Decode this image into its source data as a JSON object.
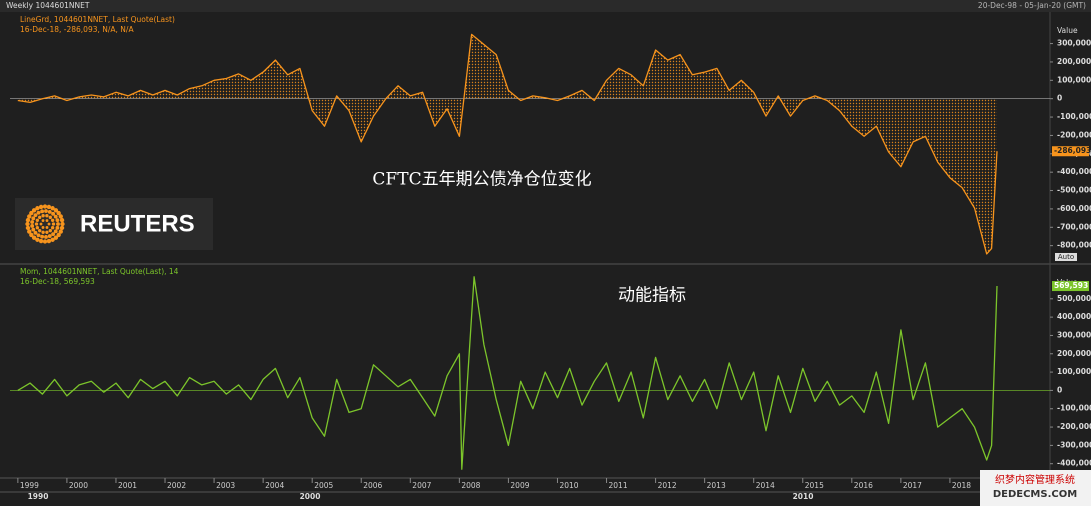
{
  "header": {
    "left": "Weekly 1044601NNET",
    "right": "20-Dec-98 - 05-Jan-20 (GMT)"
  },
  "logo": "REUTERS",
  "watermark": {
    "line1": "织梦内容管理系统",
    "line2": "DEDECMS.COM"
  },
  "x_decades": [
    "1990",
    "2000",
    "2010"
  ],
  "chart_data": [
    {
      "type": "area-line",
      "legend": [
        "LineGrd, 1044601NNET, Last Quote(Last)",
        "16-Dec-18, -286,093, N/A, N/A"
      ],
      "annotation": "CFTC五年期公债净仓位变化",
      "axis_title": "Value",
      "scale_mode": "Auto",
      "current_value": {
        "value": -286093,
        "label": "-286,093"
      },
      "color": "#f7941d",
      "xlim": [
        1998.84,
        2020.04
      ],
      "ylim": [
        -889000,
        461000
      ],
      "yticks": [
        {
          "value": 300000,
          "label": "300,000"
        },
        {
          "value": 200000,
          "label": "200,000"
        },
        {
          "value": 100000,
          "label": "100,000"
        },
        0,
        {
          "value": -100000,
          "label": "-100,000"
        },
        {
          "value": -200000,
          "label": "-200,000"
        },
        {
          "value": -300000,
          "label": "-300,000"
        },
        {
          "value": -400000,
          "label": "-400,000"
        },
        {
          "value": -500000,
          "label": "-500,000"
        },
        {
          "value": -600000,
          "label": "-600,000"
        },
        {
          "value": -700000,
          "label": "-700,000"
        },
        {
          "value": -800000,
          "label": "-800,000"
        }
      ],
      "x": [
        1999.0,
        1999.25,
        1999.5,
        1999.75,
        2000.0,
        2000.25,
        2000.5,
        2000.75,
        2001.0,
        2001.25,
        2001.5,
        2001.75,
        2002.0,
        2002.25,
        2002.5,
        2002.75,
        2003.0,
        2003.25,
        2003.5,
        2003.75,
        2004.0,
        2004.25,
        2004.5,
        2004.75,
        2005.0,
        2005.25,
        2005.5,
        2005.75,
        2006.0,
        2006.25,
        2006.5,
        2006.75,
        2007.0,
        2007.25,
        2007.5,
        2007.75,
        2008.0,
        2008.25,
        2008.5,
        2008.75,
        2009.0,
        2009.25,
        2009.5,
        2009.75,
        2010.0,
        2010.25,
        2010.5,
        2010.75,
        2011.0,
        2011.25,
        2011.5,
        2011.75,
        2012.0,
        2012.25,
        2012.5,
        2012.75,
        2013.0,
        2013.25,
        2013.5,
        2013.75,
        2014.0,
        2014.25,
        2014.5,
        2014.75,
        2015.0,
        2015.25,
        2015.5,
        2015.75,
        2016.0,
        2016.25,
        2016.5,
        2016.75,
        2017.0,
        2017.25,
        2017.5,
        2017.75,
        2018.0,
        2018.25,
        2018.5,
        2018.75,
        2018.85,
        2018.96
      ],
      "values": [
        -10000,
        -20000,
        0,
        15000,
        -10000,
        10000,
        20000,
        10000,
        35000,
        15000,
        45000,
        20000,
        45000,
        20000,
        55000,
        70000,
        100000,
        110000,
        135000,
        100000,
        145000,
        210000,
        130000,
        165000,
        -65000,
        -150000,
        15000,
        -65000,
        -235000,
        -95000,
        0,
        70000,
        15000,
        35000,
        -150000,
        -55000,
        -205000,
        350000,
        295000,
        240000,
        45000,
        -10000,
        15000,
        5000,
        -10000,
        15000,
        45000,
        -10000,
        100000,
        165000,
        130000,
        70000,
        265000,
        210000,
        240000,
        130000,
        145000,
        165000,
        45000,
        100000,
        35000,
        -95000,
        15000,
        -95000,
        -10000,
        15000,
        -10000,
        -65000,
        -150000,
        -205000,
        -150000,
        -290000,
        -370000,
        -235000,
        -205000,
        -345000,
        -430000,
        -485000,
        -595000,
        -845000,
        -815000,
        -286093
      ]
    },
    {
      "type": "line",
      "legend": [
        "Mom, 1044601NNET, Last Quote(Last), 14",
        "16-Dec-18, 569,593"
      ],
      "annotation": "动能指标",
      "axis_title": "Value",
      "current_value": {
        "value": 569593,
        "label": "569,593"
      },
      "color": "#7cc52b",
      "xlim": [
        1998.84,
        2020.04
      ],
      "xticks": [
        1999,
        2000,
        2001,
        2002,
        2003,
        2004,
        2005,
        2006,
        2007,
        2008,
        2009,
        2010,
        2011,
        2012,
        2013,
        2014,
        2015,
        2016,
        2017,
        2018
      ],
      "ylim": [
        -478000,
        679000
      ],
      "yticks": [
        {
          "value": 500000,
          "label": "500,000"
        },
        {
          "value": 400000,
          "label": "400,000"
        },
        {
          "value": 300000,
          "label": "300,000"
        },
        {
          "value": 200000,
          "label": "200,000"
        },
        {
          "value": 100000,
          "label": "100,000"
        },
        0,
        {
          "value": -100000,
          "label": "-100,000"
        },
        {
          "value": -200000,
          "label": "-200,000"
        },
        {
          "value": -300000,
          "label": "-300,000"
        },
        {
          "value": -400000,
          "label": "-400,000"
        }
      ],
      "x": [
        1999.0,
        1999.25,
        1999.5,
        1999.75,
        2000.0,
        2000.25,
        2000.5,
        2000.75,
        2001.0,
        2001.25,
        2001.5,
        2001.75,
        2002.0,
        2002.25,
        2002.5,
        2002.75,
        2003.0,
        2003.25,
        2003.5,
        2003.75,
        2004.0,
        2004.25,
        2004.5,
        2004.75,
        2005.0,
        2005.25,
        2005.5,
        2005.75,
        2006.0,
        2006.25,
        2006.5,
        2006.75,
        2007.0,
        2007.25,
        2007.5,
        2007.75,
        2008.0,
        2008.05,
        2008.3,
        2008.5,
        2008.75,
        2009.0,
        2009.25,
        2009.5,
        2009.75,
        2010.0,
        2010.25,
        2010.5,
        2010.75,
        2011.0,
        2011.25,
        2011.5,
        2011.75,
        2012.0,
        2012.25,
        2012.5,
        2012.75,
        2013.0,
        2013.25,
        2013.5,
        2013.75,
        2014.0,
        2014.25,
        2014.5,
        2014.75,
        2015.0,
        2015.25,
        2015.5,
        2015.75,
        2016.0,
        2016.25,
        2016.5,
        2016.75,
        2017.0,
        2017.25,
        2017.5,
        2017.75,
        2018.0,
        2018.25,
        2018.5,
        2018.75,
        2018.85,
        2018.96
      ],
      "values": [
        0,
        40000,
        -20000,
        60000,
        -30000,
        30000,
        50000,
        -10000,
        40000,
        -40000,
        60000,
        10000,
        50000,
        -30000,
        70000,
        30000,
        50000,
        -20000,
        30000,
        -50000,
        60000,
        120000,
        -40000,
        70000,
        -150000,
        -250000,
        60000,
        -120000,
        -100000,
        140000,
        80000,
        20000,
        60000,
        -40000,
        -140000,
        80000,
        200000,
        -430000,
        620000,
        250000,
        -50000,
        -300000,
        50000,
        -100000,
        100000,
        -40000,
        120000,
        -80000,
        50000,
        150000,
        -60000,
        100000,
        -150000,
        180000,
        -50000,
        80000,
        -60000,
        60000,
        -100000,
        150000,
        -50000,
        100000,
        -220000,
        80000,
        -120000,
        120000,
        -60000,
        50000,
        -80000,
        -30000,
        -120000,
        100000,
        -180000,
        330000,
        -50000,
        150000,
        -200000,
        -150000,
        -100000,
        -200000,
        -380000,
        -300000,
        569593
      ]
    }
  ]
}
